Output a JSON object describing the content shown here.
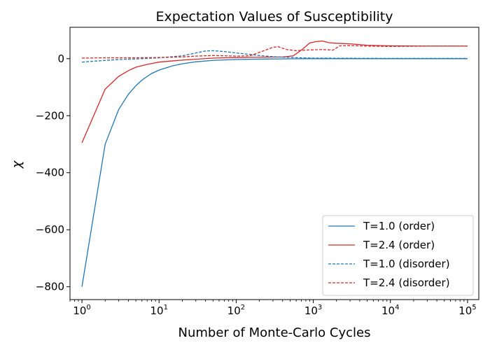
{
  "chart_data": {
    "type": "line",
    "title": "Expectation Values of Susceptibility",
    "xlabel": "Number of Monte-Carlo Cycles",
    "ylabel": "χ",
    "xscale": "log",
    "xlim": [
      0.7,
      140000
    ],
    "ylim": [
      -845,
      110
    ],
    "grid": false,
    "legend_position": "lower-right",
    "x_ticks": [
      {
        "base": "10",
        "exp": "0",
        "value": 1
      },
      {
        "base": "10",
        "exp": "1",
        "value": 10
      },
      {
        "base": "10",
        "exp": "2",
        "value": 100
      },
      {
        "base": "10",
        "exp": "3",
        "value": 1000
      },
      {
        "base": "10",
        "exp": "4",
        "value": 10000
      },
      {
        "base": "10",
        "exp": "5",
        "value": 100000
      }
    ],
    "y_ticks": [
      {
        "label": "−800",
        "value": -800
      },
      {
        "label": "−600",
        "value": -600
      },
      {
        "label": "−400",
        "value": -400
      },
      {
        "label": "−200",
        "value": -200
      },
      {
        "label": "0",
        "value": 0
      }
    ],
    "series": [
      {
        "name": "T=1.0 (order)",
        "color": "#1f77b4",
        "dash": "solid",
        "points": [
          [
            1,
            -800
          ],
          [
            2,
            -300
          ],
          [
            3,
            -178
          ],
          [
            4,
            -125
          ],
          [
            5,
            -95
          ],
          [
            6,
            -75
          ],
          [
            8,
            -52
          ],
          [
            10,
            -40
          ],
          [
            15,
            -25
          ],
          [
            20,
            -18
          ],
          [
            30,
            -11
          ],
          [
            50,
            -6
          ],
          [
            100,
            -3
          ],
          [
            200,
            -1.5
          ],
          [
            500,
            -0.5
          ],
          [
            1000,
            0
          ],
          [
            10000,
            0
          ],
          [
            100000,
            0
          ]
        ]
      },
      {
        "name": "T=2.4 (order)",
        "color": "#d62728",
        "dash": "solid",
        "points": [
          [
            1,
            -295
          ],
          [
            2,
            -107
          ],
          [
            3,
            -62
          ],
          [
            4,
            -42
          ],
          [
            5,
            -30
          ],
          [
            7,
            -20
          ],
          [
            10,
            -12
          ],
          [
            20,
            -5
          ],
          [
            30,
            -2
          ],
          [
            50,
            2
          ],
          [
            100,
            4
          ],
          [
            200,
            5
          ],
          [
            400,
            6
          ],
          [
            550,
            10
          ],
          [
            700,
            30
          ],
          [
            900,
            55
          ],
          [
            1100,
            60
          ],
          [
            1300,
            62
          ],
          [
            1600,
            56
          ],
          [
            2000,
            54
          ],
          [
            3000,
            52
          ],
          [
            5000,
            47
          ],
          [
            10000,
            45
          ],
          [
            30000,
            44
          ],
          [
            100000,
            44
          ]
        ]
      },
      {
        "name": "T=1.0 (disorder)",
        "color": "#1f77b4",
        "dash": "dashed",
        "points": [
          [
            1,
            -12
          ],
          [
            2,
            -6
          ],
          [
            3,
            -3
          ],
          [
            5,
            -1
          ],
          [
            10,
            3
          ],
          [
            20,
            10
          ],
          [
            30,
            20
          ],
          [
            40,
            27
          ],
          [
            50,
            28
          ],
          [
            70,
            25
          ],
          [
            100,
            20
          ],
          [
            150,
            15
          ],
          [
            200,
            11
          ],
          [
            300,
            7
          ],
          [
            500,
            4
          ],
          [
            1000,
            2
          ],
          [
            10000,
            1
          ],
          [
            100000,
            1
          ]
        ]
      },
      {
        "name": "T=2.4 (disorder)",
        "color": "#d62728",
        "dash": "dashed",
        "points": [
          [
            1,
            2
          ],
          [
            2,
            3
          ],
          [
            3,
            3
          ],
          [
            5,
            3
          ],
          [
            10,
            4
          ],
          [
            20,
            6
          ],
          [
            30,
            9
          ],
          [
            50,
            11
          ],
          [
            70,
            10
          ],
          [
            100,
            9
          ],
          [
            150,
            10
          ],
          [
            200,
            22
          ],
          [
            300,
            40
          ],
          [
            350,
            42
          ],
          [
            450,
            32
          ],
          [
            600,
            28
          ],
          [
            800,
            30
          ],
          [
            1000,
            31
          ],
          [
            1300,
            32
          ],
          [
            1800,
            30
          ],
          [
            2200,
            45
          ],
          [
            3000,
            46
          ],
          [
            5000,
            44
          ],
          [
            10000,
            43
          ],
          [
            30000,
            44
          ],
          [
            100000,
            44
          ]
        ]
      }
    ]
  }
}
